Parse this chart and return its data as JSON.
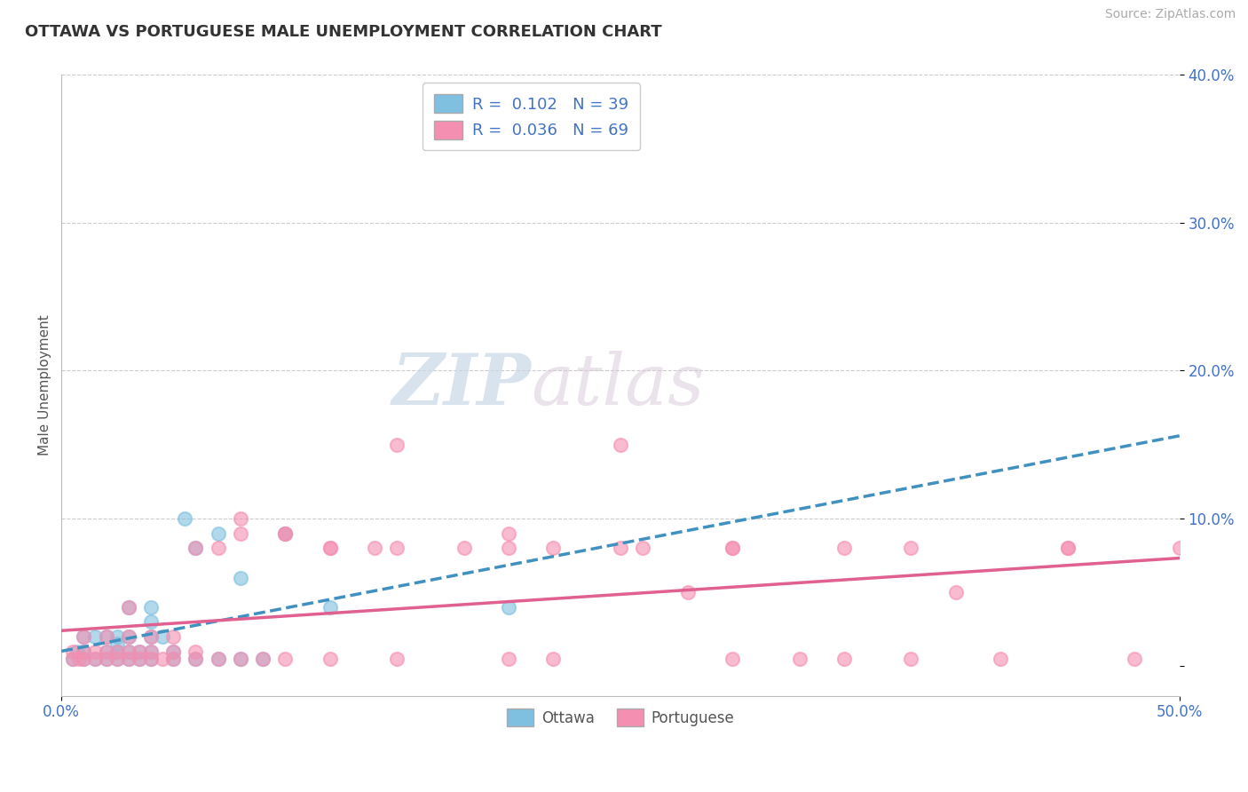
{
  "title": "OTTAWA VS PORTUGUESE MALE UNEMPLOYMENT CORRELATION CHART",
  "source": "Source: ZipAtlas.com",
  "ylabel": "Male Unemployment",
  "xlim": [
    0.0,
    0.5
  ],
  "ylim": [
    -0.02,
    0.4
  ],
  "xticks": [
    0.0,
    0.5
  ],
  "xticklabels": [
    "0.0%",
    "50.0%"
  ],
  "yticks": [
    0.0,
    0.1,
    0.2,
    0.3,
    0.4
  ],
  "yticklabels": [
    "",
    "10.0%",
    "20.0%",
    "30.0%",
    "40.0%"
  ],
  "grid_yticks": [
    0.1,
    0.2,
    0.3,
    0.4
  ],
  "ottawa_color": "#7fbfdf",
  "portuguese_color": "#f48fb1",
  "ottawa_line_color": "#4090c0",
  "portuguese_line_color": "#e06090",
  "ottawa_R": 0.102,
  "ottawa_N": 39,
  "portuguese_R": 0.036,
  "portuguese_N": 69,
  "ottawa_scatter_x": [
    0.005,
    0.007,
    0.01,
    0.01,
    0.01,
    0.015,
    0.015,
    0.02,
    0.02,
    0.02,
    0.025,
    0.025,
    0.025,
    0.025,
    0.03,
    0.03,
    0.03,
    0.03,
    0.035,
    0.035,
    0.04,
    0.04,
    0.04,
    0.04,
    0.04,
    0.045,
    0.05,
    0.05,
    0.055,
    0.06,
    0.06,
    0.07,
    0.07,
    0.08,
    0.08,
    0.09,
    0.1,
    0.12,
    0.2
  ],
  "ottawa_scatter_y": [
    0.005,
    0.01,
    0.005,
    0.01,
    0.02,
    0.005,
    0.02,
    0.005,
    0.01,
    0.02,
    0.005,
    0.01,
    0.015,
    0.02,
    0.005,
    0.01,
    0.02,
    0.04,
    0.005,
    0.01,
    0.005,
    0.01,
    0.02,
    0.03,
    0.04,
    0.02,
    0.005,
    0.01,
    0.1,
    0.005,
    0.08,
    0.005,
    0.09,
    0.005,
    0.06,
    0.005,
    0.09,
    0.04,
    0.04
  ],
  "portuguese_scatter_x": [
    0.005,
    0.005,
    0.008,
    0.01,
    0.01,
    0.01,
    0.015,
    0.015,
    0.02,
    0.02,
    0.02,
    0.025,
    0.025,
    0.03,
    0.03,
    0.03,
    0.03,
    0.035,
    0.035,
    0.04,
    0.04,
    0.04,
    0.045,
    0.05,
    0.05,
    0.05,
    0.06,
    0.06,
    0.06,
    0.07,
    0.07,
    0.08,
    0.08,
    0.09,
    0.1,
    0.1,
    0.12,
    0.12,
    0.15,
    0.15,
    0.15,
    0.2,
    0.2,
    0.22,
    0.22,
    0.25,
    0.25,
    0.28,
    0.3,
    0.3,
    0.33,
    0.35,
    0.35,
    0.38,
    0.4,
    0.42,
    0.45,
    0.48,
    0.08,
    0.1,
    0.12,
    0.14,
    0.18,
    0.2,
    0.26,
    0.3,
    0.38,
    0.45,
    0.5
  ],
  "portuguese_scatter_y": [
    0.005,
    0.01,
    0.005,
    0.005,
    0.01,
    0.02,
    0.005,
    0.01,
    0.005,
    0.01,
    0.02,
    0.005,
    0.01,
    0.005,
    0.01,
    0.02,
    0.04,
    0.005,
    0.01,
    0.005,
    0.01,
    0.02,
    0.005,
    0.005,
    0.01,
    0.02,
    0.005,
    0.01,
    0.08,
    0.005,
    0.08,
    0.005,
    0.09,
    0.005,
    0.005,
    0.09,
    0.005,
    0.08,
    0.005,
    0.08,
    0.15,
    0.005,
    0.09,
    0.005,
    0.08,
    0.15,
    0.08,
    0.05,
    0.005,
    0.08,
    0.005,
    0.005,
    0.08,
    0.005,
    0.05,
    0.005,
    0.08,
    0.005,
    0.1,
    0.09,
    0.08,
    0.08,
    0.08,
    0.08,
    0.08,
    0.08,
    0.08,
    0.08,
    0.08
  ],
  "watermark_zip": "ZIP",
  "watermark_atlas": "atlas",
  "grid_color": "#cccccc",
  "background_color": "#ffffff"
}
